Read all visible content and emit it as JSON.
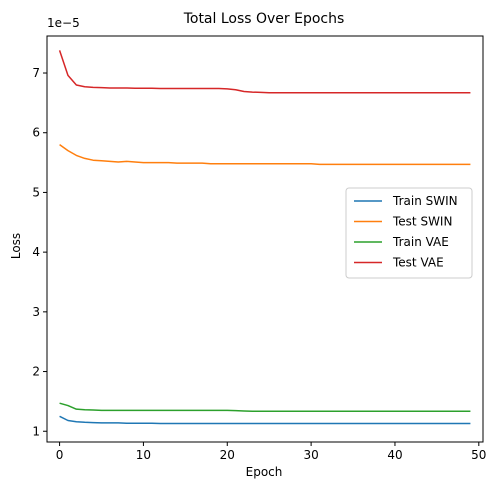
{
  "chart_data": {
    "type": "line",
    "title": "Total Loss Over Epochs",
    "xlabel": "Epoch",
    "ylabel": "Loss",
    "y_multiplier": "1e−5",
    "xlim": [
      -1.5,
      50.5
    ],
    "ylim": [
      0.82,
      7.62
    ],
    "xticks": [
      0,
      10,
      20,
      30,
      40,
      50
    ],
    "yticks": [
      1,
      2,
      3,
      4,
      5,
      6,
      7
    ],
    "legend_position": "center-right",
    "grid": false,
    "x": [
      0,
      1,
      2,
      3,
      4,
      5,
      6,
      7,
      8,
      9,
      10,
      11,
      12,
      13,
      14,
      15,
      16,
      17,
      18,
      19,
      20,
      21,
      22,
      23,
      24,
      25,
      26,
      27,
      28,
      29,
      30,
      31,
      32,
      33,
      34,
      35,
      36,
      37,
      38,
      39,
      40,
      41,
      42,
      43,
      44,
      45,
      46,
      47,
      48,
      49
    ],
    "series": [
      {
        "name": "Train SWIN",
        "color": "#1f77b4",
        "values": [
          1.25,
          1.18,
          1.16,
          1.15,
          1.145,
          1.14,
          1.14,
          1.14,
          1.135,
          1.135,
          1.135,
          1.135,
          1.13,
          1.13,
          1.13,
          1.13,
          1.13,
          1.13,
          1.13,
          1.13,
          1.13,
          1.13,
          1.13,
          1.13,
          1.13,
          1.13,
          1.13,
          1.13,
          1.13,
          1.13,
          1.13,
          1.13,
          1.13,
          1.13,
          1.13,
          1.13,
          1.13,
          1.13,
          1.13,
          1.13,
          1.13,
          1.13,
          1.13,
          1.13,
          1.13,
          1.13,
          1.13,
          1.13,
          1.13,
          1.13
        ]
      },
      {
        "name": "Test SWIN",
        "color": "#ff7f0e",
        "values": [
          5.8,
          5.7,
          5.62,
          5.57,
          5.54,
          5.53,
          5.52,
          5.51,
          5.52,
          5.51,
          5.5,
          5.5,
          5.5,
          5.5,
          5.49,
          5.49,
          5.49,
          5.49,
          5.48,
          5.48,
          5.48,
          5.48,
          5.48,
          5.48,
          5.48,
          5.48,
          5.48,
          5.48,
          5.48,
          5.48,
          5.48,
          5.47,
          5.47,
          5.47,
          5.47,
          5.47,
          5.47,
          5.47,
          5.47,
          5.47,
          5.47,
          5.47,
          5.47,
          5.47,
          5.47,
          5.47,
          5.47,
          5.47,
          5.47,
          5.47
        ]
      },
      {
        "name": "Train VAE",
        "color": "#2ca02c",
        "values": [
          1.47,
          1.43,
          1.37,
          1.36,
          1.355,
          1.35,
          1.35,
          1.35,
          1.35,
          1.35,
          1.35,
          1.35,
          1.35,
          1.35,
          1.35,
          1.35,
          1.35,
          1.35,
          1.35,
          1.35,
          1.35,
          1.345,
          1.34,
          1.335,
          1.335,
          1.335,
          1.335,
          1.335,
          1.335,
          1.335,
          1.335,
          1.335,
          1.335,
          1.335,
          1.335,
          1.335,
          1.335,
          1.335,
          1.335,
          1.335,
          1.335,
          1.335,
          1.335,
          1.335,
          1.335,
          1.335,
          1.335,
          1.335,
          1.335,
          1.335
        ]
      },
      {
        "name": "Test VAE",
        "color": "#d62728",
        "values": [
          7.38,
          6.96,
          6.8,
          6.77,
          6.76,
          6.755,
          6.75,
          6.75,
          6.75,
          6.745,
          6.745,
          6.745,
          6.74,
          6.74,
          6.74,
          6.74,
          6.74,
          6.74,
          6.74,
          6.74,
          6.735,
          6.72,
          6.69,
          6.68,
          6.675,
          6.67,
          6.67,
          6.67,
          6.67,
          6.67,
          6.67,
          6.67,
          6.67,
          6.67,
          6.67,
          6.67,
          6.67,
          6.67,
          6.67,
          6.67,
          6.67,
          6.67,
          6.67,
          6.67,
          6.67,
          6.67,
          6.67,
          6.67,
          6.67,
          6.67
        ]
      }
    ]
  }
}
